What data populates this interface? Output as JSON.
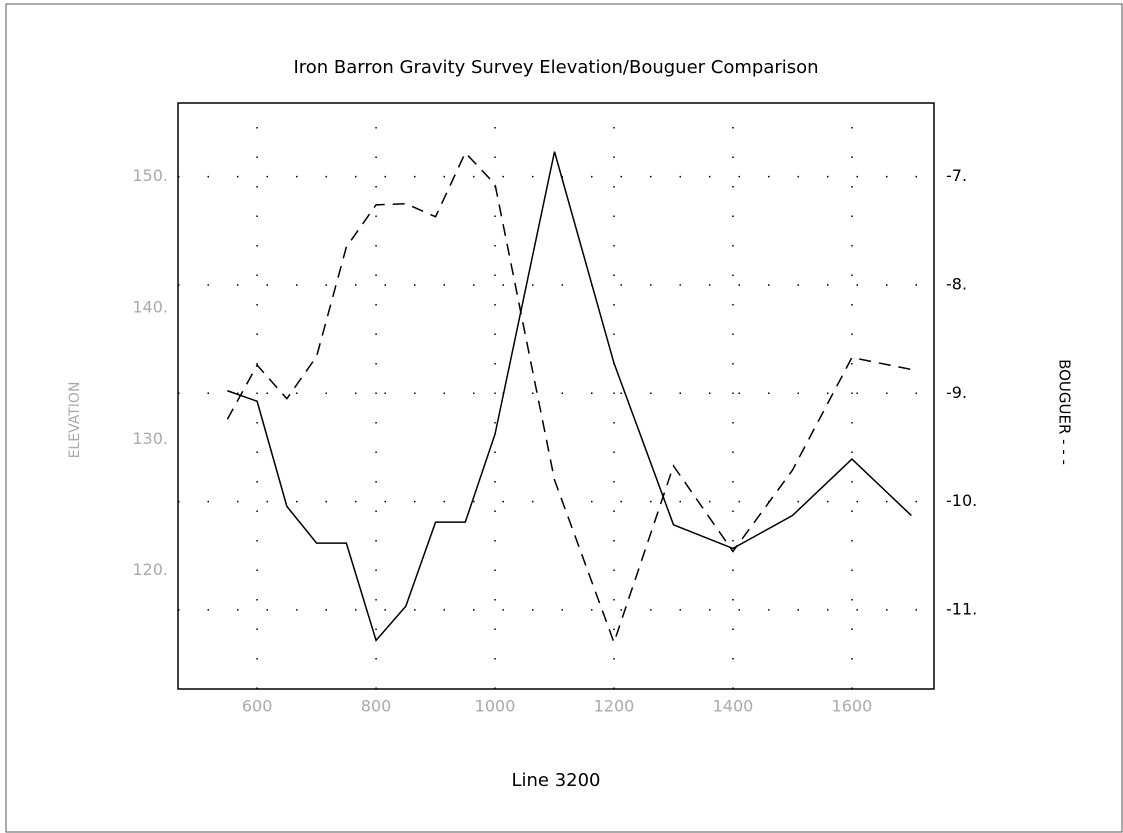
{
  "chart_data": {
    "type": "line",
    "title": "Iron Barron Gravity Survey Elevation/Bouguer Comparison",
    "x_label": "Line 3200",
    "y_label": "ELEVATION",
    "y2_label": "BOUGUER - - -",
    "x": [
      550,
      600,
      650,
      700,
      750,
      800,
      850,
      900,
      950,
      1000,
      1100,
      1200,
      1300,
      1400,
      1500,
      1600,
      1700
    ],
    "series": [
      {
        "name": "ELEVATION",
        "color": "#000000",
        "dash": false,
        "axis": "y",
        "values": [
          133.7,
          132.9,
          124.9,
          122.1,
          122.1,
          114.7,
          117.3,
          123.7,
          123.7,
          130.4,
          151.9,
          135.8,
          123.5,
          121.7,
          124.2,
          128.5,
          124.2
        ]
      },
      {
        "name": "BOUGUER",
        "color": "#000000",
        "dash": true,
        "axis": "y2",
        "values": [
          -9.24,
          -8.74,
          -9.05,
          -8.66,
          -7.65,
          -7.26,
          -7.25,
          -7.37,
          -6.78,
          -7.07,
          -9.8,
          -11.3,
          -9.67,
          -10.46,
          -9.71,
          -8.67,
          -8.78
        ]
      }
    ],
    "xlim": [
      467,
      1738
    ],
    "xticks": [
      600,
      800,
      1000,
      1200,
      1400,
      1600
    ],
    "ylim": [
      111,
      155.6
    ],
    "yticks": [
      {
        "value": 120,
        "label": "120."
      },
      {
        "value": 130,
        "label": "130."
      },
      {
        "value": 140,
        "label": "140."
      },
      {
        "value": 150,
        "label": "150."
      }
    ],
    "y2lim": [
      -11.73,
      -6.32
    ],
    "y2ticks": [
      {
        "value": -11,
        "label": "-11."
      },
      {
        "value": -10,
        "label": "-10."
      },
      {
        "value": -9,
        "label": "-9."
      },
      {
        "value": -8,
        "label": "-8."
      },
      {
        "value": -7,
        "label": "-7."
      }
    ],
    "grid": true
  }
}
